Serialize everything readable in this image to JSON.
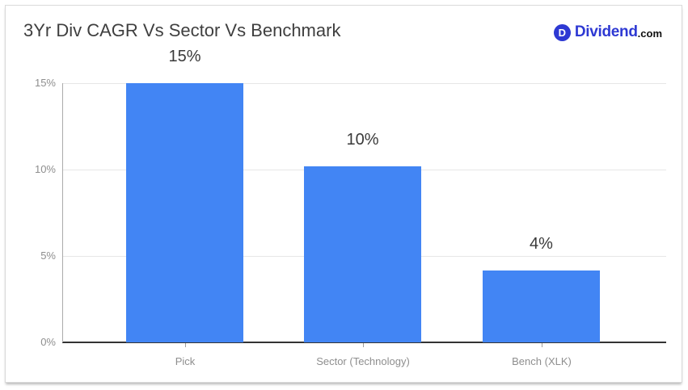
{
  "header": {
    "title": "3Yr Div CAGR Vs Sector Vs Benchmark",
    "logo": {
      "icon_letter": "D",
      "brand": "Dividend",
      "suffix": ".com"
    }
  },
  "colors": {
    "bar": "#4285f4",
    "logo_blue": "#2e39d3",
    "gridline": "#e6e6e6",
    "baseline": "#333333",
    "axis_line": "#ababab",
    "axis_text": "#8e8e8e",
    "value_label_text": "#3a3a3a",
    "title_text": "#3f3f3f"
  },
  "chart_data": {
    "type": "bar",
    "title": "3Yr Div CAGR Vs Sector Vs Benchmark",
    "categories": [
      "Pick",
      "Sector (Technology)",
      "Bench (XLK)"
    ],
    "values": [
      15,
      10.2,
      4.15
    ],
    "data_labels": [
      "15%",
      "10%",
      "4%"
    ],
    "yticks": [
      {
        "value": 0,
        "label": "0%"
      },
      {
        "value": 5,
        "label": "5%"
      },
      {
        "value": 10,
        "label": "10%"
      },
      {
        "value": 15,
        "label": "15%"
      }
    ],
    "ylim": [
      0,
      15
    ],
    "xlabel": "",
    "ylabel": "",
    "grid": true,
    "legend": "none",
    "bar_color": "#4285f4"
  }
}
